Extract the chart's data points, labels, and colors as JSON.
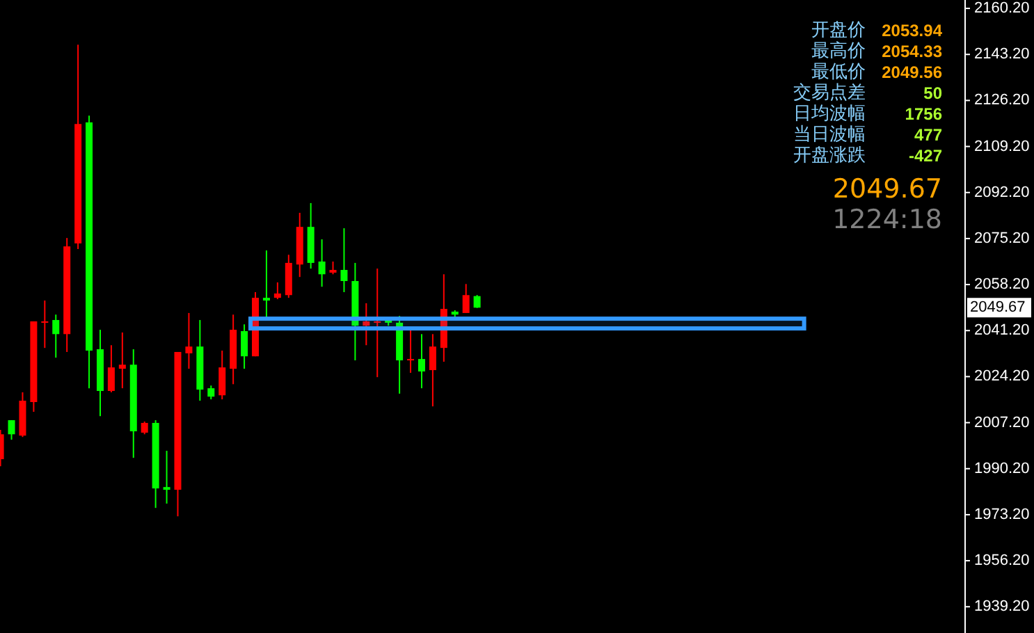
{
  "chart_data": {
    "type": "candlestick",
    "categories": [
      null,
      null,
      null,
      null,
      null,
      null,
      null,
      null,
      null,
      null,
      null,
      null,
      null,
      null,
      null,
      null,
      null,
      null,
      null,
      null,
      null,
      null,
      null,
      null,
      null,
      null,
      null,
      null,
      null,
      null,
      null,
      null,
      null,
      null,
      null,
      null,
      null,
      null,
      null,
      null,
      null,
      null,
      null,
      null,
      null,
      null,
      null,
      null,
      null,
      null,
      null,
      null,
      null,
      null,
      null,
      null,
      null,
      null,
      null,
      null,
      null,
      null,
      null,
      null,
      null,
      null,
      null,
      null,
      null,
      null,
      null,
      null,
      null,
      null,
      null,
      null,
      null,
      null,
      null,
      null,
      null,
      null,
      null,
      null,
      null,
      null,
      null
    ],
    "ohlc": [
      [
        1993.7,
        2004.5,
        1991.1,
        2002.9
      ],
      [
        2008.1,
        2008.1,
        2000.9,
        2002.9
      ],
      [
        2002.4,
        2018.4,
        2001.9,
        2015.3
      ],
      [
        2014.8,
        2044.6,
        2011.2,
        2044.6
      ],
      [
        2044.1,
        2052.3,
        2034.8,
        2044.6
      ],
      [
        2045.1,
        2047.1,
        2031.2,
        2039.9
      ],
      [
        2039.9,
        2075.4,
        2033.3,
        2072.3
      ],
      [
        2073.4,
        2146.8,
        2071.3,
        2117.5
      ],
      [
        2118.1,
        2120.6,
        2019.9,
        2033.8
      ],
      [
        2034.3,
        2041.5,
        2009.6,
        2018.9
      ],
      [
        2018.9,
        2035.8,
        2018.4,
        2027.6
      ],
      [
        2027.1,
        2040.5,
        2019.9,
        2028.6
      ],
      [
        2028.6,
        2034.3,
        1994.2,
        2004.0
      ],
      [
        2003.5,
        2007.6,
        2002.9,
        2007.1
      ],
      [
        2007.1,
        2008.1,
        1975.7,
        1982.9
      ],
      [
        1983.4,
        1996.8,
        1977.3,
        1982.4
      ],
      [
        1982.4,
        2033.3,
        1972.6,
        2033.3
      ],
      [
        2032.8,
        2047.7,
        2027.1,
        2035.3
      ],
      [
        2035.3,
        2045.1,
        2015.3,
        2019.4
      ],
      [
        2019.9,
        2020.9,
        2015.8,
        2016.8
      ],
      [
        2017.3,
        2033.8,
        2015.8,
        2027.6
      ],
      [
        2027.1,
        2047.1,
        2021.4,
        2041.5
      ],
      [
        2041.0,
        2043.5,
        2027.1,
        2031.7
      ],
      [
        2031.7,
        2055.4,
        2031.7,
        2053.3
      ],
      [
        2053.3,
        2070.8,
        2046.1,
        2052.3
      ],
      [
        2053.3,
        2059.0,
        2052.8,
        2054.9
      ],
      [
        2054.3,
        2069.2,
        2053.3,
        2066.2
      ],
      [
        2065.6,
        2084.7,
        2061.0,
        2079.5
      ],
      [
        2079.5,
        2088.3,
        2064.1,
        2066.2
      ],
      [
        2066.7,
        2074.9,
        2057.4,
        2062.0
      ],
      [
        2062.6,
        2066.7,
        2062.0,
        2063.6
      ],
      [
        2063.6,
        2079.0,
        2055.4,
        2059.5
      ],
      [
        2059.5,
        2066.2,
        2030.2,
        2043.0
      ],
      [
        2043.0,
        2051.3,
        2035.8,
        2044.6
      ],
      [
        2044.1,
        2064.1,
        2024.0,
        2044.6
      ],
      [
        2045.1,
        2046.1,
        2043.0,
        2044.1
      ],
      [
        2044.1,
        2046.6,
        2017.9,
        2030.2
      ],
      [
        2030.2,
        2042.0,
        2025.6,
        2030.7
      ],
      [
        2030.7,
        2039.9,
        2019.9,
        2026.1
      ],
      [
        2026.6,
        2039.9,
        2013.2,
        2035.3
      ],
      [
        2034.8,
        2062.0,
        2029.7,
        2049.2
      ],
      [
        2048.2,
        2048.7,
        2046.1,
        2047.1
      ],
      [
        2047.7,
        2058.4,
        2047.7,
        2054.3
      ],
      [
        2053.94,
        2054.33,
        2049.56,
        2049.67
      ],
      null,
      null,
      null,
      null,
      null,
      null,
      null,
      null,
      null,
      null,
      null,
      null,
      null,
      null,
      null,
      null,
      null,
      null,
      null,
      null,
      null,
      null,
      null,
      null,
      null,
      null,
      null,
      null,
      null,
      null,
      null,
      null,
      null,
      null,
      null,
      null,
      null,
      null,
      null,
      null,
      null,
      null,
      null
    ],
    "colors": [
      "#ff0000",
      "#00ff00",
      "#ff0000",
      "#ff0000",
      "#ff0000",
      "#00ff00",
      "#ff0000",
      "#ff0000",
      "#00ff00",
      "#00ff00",
      "#ff0000",
      "#ff0000",
      "#00ff00",
      "#ff0000",
      "#00ff00",
      "#00ff00",
      "#ff0000",
      "#ff0000",
      "#00ff00",
      "#00ff00",
      "#ff0000",
      "#ff0000",
      "#00ff00",
      "#ff0000",
      "#00ff00",
      "#ff0000",
      "#ff0000",
      "#ff0000",
      "#00ff00",
      "#00ff00",
      "#ff0000",
      "#00ff00",
      "#00ff00",
      "#ff0000",
      "#ff0000",
      "#00ff00",
      "#00ff00",
      "#ff0000",
      "#00ff00",
      "#ff0000",
      "#ff0000",
      "#00ff00",
      "#ff0000",
      "#00ff00",
      null,
      null,
      null,
      null,
      null,
      null,
      null,
      null,
      null,
      null,
      null,
      null,
      null,
      null,
      null,
      null,
      null,
      null,
      null,
      null,
      null,
      null,
      null,
      null,
      null,
      null,
      null,
      null,
      null,
      null,
      null,
      null,
      null,
      null,
      null,
      null,
      null,
      null,
      null,
      null,
      null,
      null,
      null
    ],
    "ylim": [
      1929.5,
      2163.3
    ],
    "yticks": [
      {
        "value": 2160.2,
        "label": "2160.20"
      },
      {
        "value": 2143.2,
        "label": "2143.20"
      },
      {
        "value": 2126.2,
        "label": "2126.20"
      },
      {
        "value": 2109.2,
        "label": "2109.20"
      },
      {
        "value": 2092.2,
        "label": "2092.20"
      },
      {
        "value": 2075.2,
        "label": "2075.20"
      },
      {
        "value": 2058.2,
        "label": "2058.20"
      },
      {
        "value": 2041.2,
        "label": "2041.20"
      },
      {
        "value": 2024.2,
        "label": "2024.20"
      },
      {
        "value": 2007.2,
        "label": "2007.20"
      },
      {
        "value": 1990.2,
        "label": "1990.20"
      },
      {
        "value": 1973.2,
        "label": "1973.20"
      },
      {
        "value": 1956.2,
        "label": "1956.20"
      },
      {
        "value": 1939.2,
        "label": "1939.20"
      }
    ],
    "bands": [
      {
        "axis": "y",
        "from": 2042.0,
        "to": 2045.6,
        "color": "#3399ff"
      }
    ],
    "tick_labels": "y",
    "grid": false,
    "annotations": [
      "开盘价 2053.94",
      "最高价 2054.33",
      "最低价 2049.56",
      "交易点差 50",
      "日均波幅 1756",
      "当日波幅 477",
      "开盘涨跌 -427",
      "2049.67",
      "1224:18",
      "2049.67"
    ]
  }
}
